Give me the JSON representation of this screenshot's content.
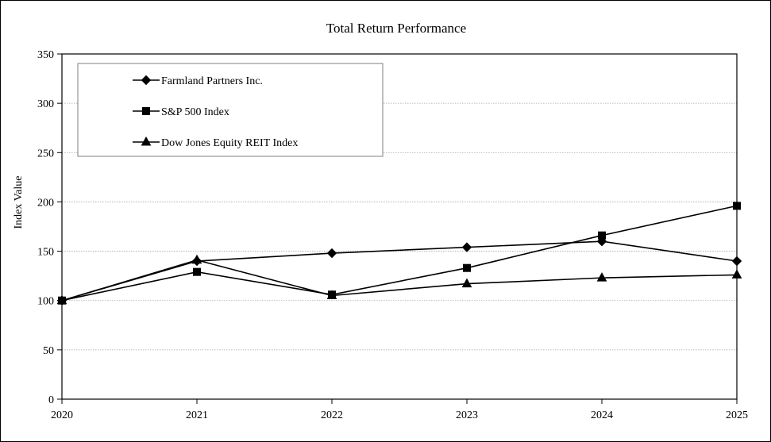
{
  "chart_data": {
    "type": "line",
    "title": "Total Return Performance",
    "xlabel": "",
    "ylabel": "Index Value",
    "x": [
      "2020",
      "2021",
      "2022",
      "2023",
      "2024",
      "2025"
    ],
    "ylim": [
      0,
      350
    ],
    "yticks": [
      "0",
      "50",
      "100",
      "150",
      "200",
      "250",
      "300",
      "350"
    ],
    "grid": true,
    "legend_position": "top-left",
    "series": [
      {
        "name": "Farmland Partners Inc.",
        "marker": "diamond",
        "values": [
          100,
          140,
          148,
          154,
          160,
          140
        ]
      },
      {
        "name": "S&P 500 Index",
        "marker": "square",
        "values": [
          100,
          129,
          106,
          133,
          166,
          196
        ]
      },
      {
        "name": "Dow Jones Equity REIT Index",
        "marker": "triangle",
        "values": [
          100,
          141,
          105,
          117,
          123,
          126
        ]
      }
    ],
    "colors": {
      "line": "#000000",
      "grid": "#a6a6a6",
      "background": "#ffffff"
    }
  }
}
